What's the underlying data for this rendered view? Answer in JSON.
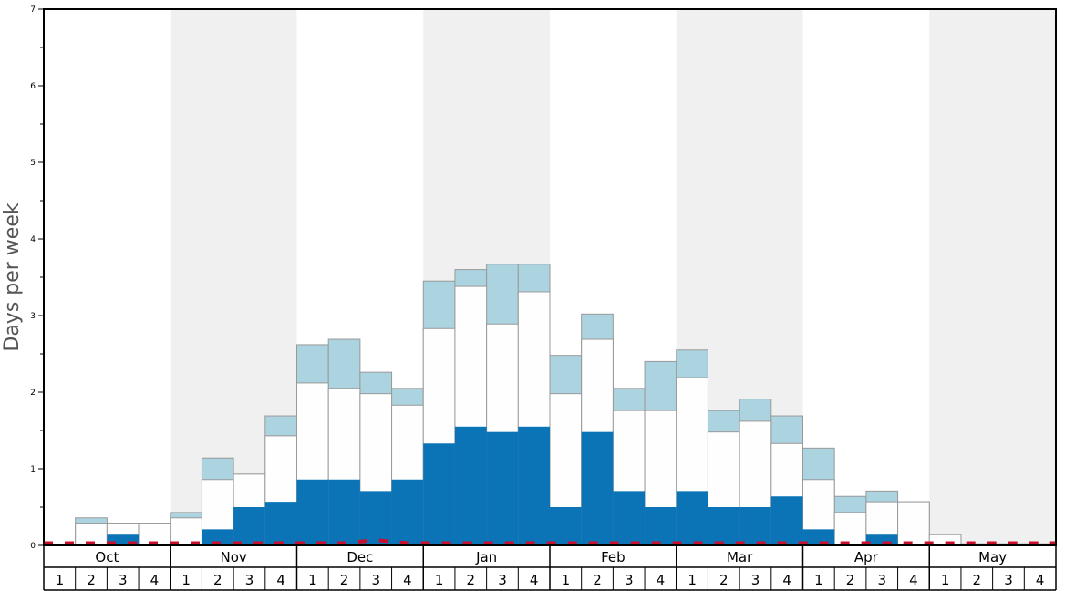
{
  "chart_data": {
    "type": "bar",
    "ylabel": "Days per week",
    "ylim": [
      0,
      7
    ],
    "yticks": [
      0,
      1,
      2,
      3,
      4,
      5,
      6,
      7
    ],
    "months": [
      "Oct",
      "Nov",
      "Dec",
      "Jan",
      "Feb",
      "Mar",
      "Apr",
      "May"
    ],
    "weeks": [
      "1",
      "2",
      "3",
      "4"
    ],
    "categories": [
      "Oct 1",
      "Oct 2",
      "Oct 3",
      "Oct 4",
      "Nov 1",
      "Nov 2",
      "Nov 3",
      "Nov 4",
      "Dec 1",
      "Dec 2",
      "Dec 3",
      "Dec 4",
      "Jan 1",
      "Jan 2",
      "Jan 3",
      "Jan 4",
      "Feb 1",
      "Feb 2",
      "Feb 3",
      "Feb 4",
      "Mar 1",
      "Mar 2",
      "Mar 3",
      "Mar 4",
      "Apr 1",
      "Apr 2",
      "Apr 3",
      "Apr 4",
      "May 1",
      "May 2",
      "May 3",
      "May 4"
    ],
    "series": [
      {
        "color": "#0a74b6",
        "values": [
          0,
          0,
          0.14,
          0,
          0,
          0.21,
          0.5,
          0.57,
          0.86,
          0.86,
          0.71,
          0.86,
          1.33,
          1.55,
          1.48,
          1.55,
          0.5,
          1.48,
          0.71,
          0.5,
          0.71,
          0.5,
          0.5,
          0.64,
          0.21,
          0,
          0.14,
          0,
          0,
          0,
          0,
          0
        ]
      },
      {
        "color": "#fefefe",
        "values": [
          0,
          0.29,
          0.29,
          0.29,
          0.36,
          0.86,
          0.93,
          1.43,
          2.12,
          2.05,
          1.98,
          1.83,
          2.83,
          3.38,
          2.89,
          3.31,
          1.98,
          2.69,
          1.76,
          1.76,
          2.19,
          1.48,
          1.62,
          1.33,
          0.86,
          0.43,
          0.57,
          0.57,
          0.14,
          0.02,
          0.02,
          0.02
        ]
      },
      {
        "color": "#acd3e0",
        "values": [
          0,
          0.36,
          0.29,
          0.29,
          0.43,
          1.14,
          0.93,
          1.69,
          2.62,
          2.69,
          2.26,
          2.05,
          3.45,
          3.6,
          3.67,
          3.67,
          2.48,
          3.02,
          2.05,
          2.4,
          2.55,
          1.76,
          1.91,
          1.69,
          1.27,
          0.64,
          0.71,
          0.57,
          0.14,
          0.02,
          0.02,
          0.02
        ]
      }
    ],
    "average_line": {
      "color": "#c8102e",
      "style": "dashed",
      "values": [
        0.03,
        0.03,
        0.03,
        0.03,
        0.03,
        0.03,
        0.03,
        0.03,
        0.03,
        0.03,
        0.07,
        0.03,
        0.03,
        0.03,
        0.03,
        0.03,
        0.03,
        0.03,
        0.03,
        0.03,
        0.03,
        0.03,
        0.03,
        0.03,
        0.03,
        0.03,
        0.03,
        0.03,
        0.03,
        0.03,
        0.03,
        0.03
      ]
    },
    "shaded_months": [
      "Nov",
      "Jan",
      "Mar",
      "May"
    ],
    "shade_color": "#f0f0f0",
    "grid": false
  }
}
